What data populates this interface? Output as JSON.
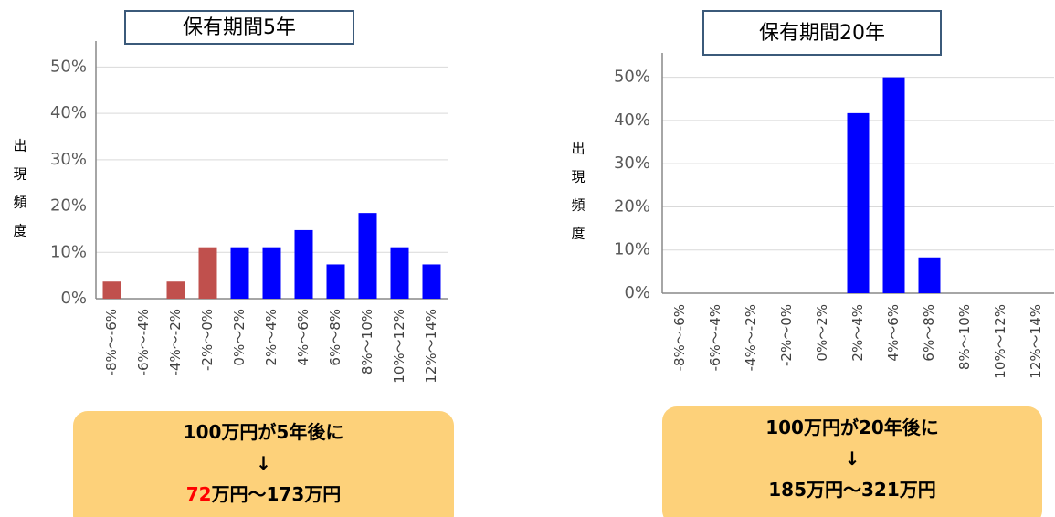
{
  "chart_data": [
    {
      "type": "bar",
      "title": "保有期間5年",
      "ylabel": [
        "出",
        "現",
        "頻",
        "度"
      ],
      "categories": [
        "-8%～-6%",
        "-6%～-4%",
        "-4%～-2%",
        "-2%～0%",
        "0%～2%",
        "2%～4%",
        "4%～6%",
        "6%～8%",
        "8%～10%",
        "10%～12%",
        "12%～14%"
      ],
      "values": [
        3.7,
        0,
        3.7,
        11.1,
        11.1,
        11.1,
        14.8,
        7.4,
        18.5,
        11.1,
        7.4
      ],
      "colors": [
        "#c0504d",
        "#c0504d",
        "#c0504d",
        "#c0504d",
        "#0000ff",
        "#0000ff",
        "#0000ff",
        "#0000ff",
        "#0000ff",
        "#0000ff",
        "#0000ff"
      ],
      "ylim": [
        0,
        55
      ],
      "yticks": [
        {
          "value": 0,
          "label": "0%"
        },
        {
          "value": 10,
          "label": "10%"
        },
        {
          "value": 20,
          "label": "20%"
        },
        {
          "value": 30,
          "label": "30%"
        },
        {
          "value": 40,
          "label": "40%"
        },
        {
          "value": 50,
          "label": "50%"
        }
      ],
      "grid": true,
      "annotation": [
        [
          {
            "text": "100万円が5年後に"
          }
        ],
        [
          {
            "text": "↓"
          }
        ],
        [
          {
            "text": "72",
            "color": "#ff0000"
          },
          {
            "text": "万円〜173万円"
          }
        ]
      ]
    },
    {
      "type": "bar",
      "title": "保有期間20年",
      "ylabel": [
        "出",
        "現",
        "頻",
        "度"
      ],
      "categories": [
        "-8%～-6%",
        "-6%～-4%",
        "-4%～-2%",
        "-2%～0%",
        "0%～2%",
        "2%～4%",
        "4%～6%",
        "6%～8%",
        "8%～10%",
        "10%～12%",
        "12%～14%"
      ],
      "values": [
        0,
        0,
        0,
        0,
        0,
        41.7,
        50,
        8.3,
        0,
        0,
        0
      ],
      "colors": [
        "#0000ff",
        "#0000ff",
        "#0000ff",
        "#0000ff",
        "#0000ff",
        "#0000ff",
        "#0000ff",
        "#0000ff",
        "#0000ff",
        "#0000ff",
        "#0000ff"
      ],
      "ylim": [
        0,
        55
      ],
      "yticks": [
        {
          "value": 0,
          "label": "0%"
        },
        {
          "value": 10,
          "label": "10%"
        },
        {
          "value": 20,
          "label": "20%"
        },
        {
          "value": 30,
          "label": "30%"
        },
        {
          "value": 40,
          "label": "40%"
        },
        {
          "value": 50,
          "label": "50%"
        }
      ],
      "grid": true,
      "annotation": [
        [
          {
            "text": "100万円が20年後に"
          }
        ],
        [
          {
            "text": "↓"
          }
        ],
        [
          {
            "text": "185万円〜321万円"
          }
        ]
      ]
    }
  ]
}
